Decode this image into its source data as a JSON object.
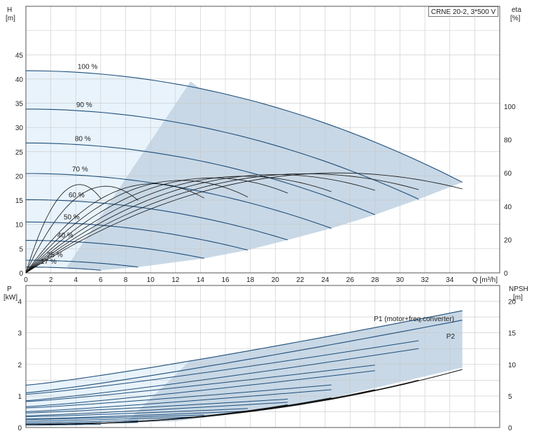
{
  "chart_data": [
    {
      "type": "line",
      "title": "CRNE 20-2, 3*500 V",
      "xlabel": "Q [m³/h]",
      "ylabel_lines": [
        "H",
        "[m]"
      ],
      "ylabel2_lines": [
        "eta",
        "[%]"
      ],
      "xlim": [
        0,
        38
      ],
      "ylim": [
        0,
        55
      ],
      "y2lim": [
        0,
        160
      ],
      "xticks": [
        0,
        2,
        4,
        6,
        8,
        10,
        12,
        14,
        16,
        18,
        20,
        22,
        24,
        26,
        28,
        30,
        32,
        34
      ],
      "yticks": [
        0,
        5,
        10,
        15,
        20,
        25,
        30,
        35,
        40,
        45
      ],
      "y2ticks": [
        0,
        20,
        40,
        60,
        80,
        100
      ],
      "grid": true,
      "head_curves": [
        {
          "name": "100 %",
          "h0": 41.7,
          "qmax": 35.0,
          "hend": 18.7
        },
        {
          "name": "90 %",
          "h0": 33.8,
          "qmax": 31.5,
          "hend": 15.2
        },
        {
          "name": "80 %",
          "h0": 26.8,
          "qmax": 28.0,
          "hend": 12.0
        },
        {
          "name": "70 %",
          "h0": 20.5,
          "qmax": 24.5,
          "hend": 9.2
        },
        {
          "name": "60 %",
          "h0": 15.1,
          "qmax": 21.0,
          "hend": 6.8
        },
        {
          "name": "50 %",
          "h0": 10.5,
          "qmax": 17.8,
          "hend": 4.7
        },
        {
          "name": "40 %",
          "h0": 6.7,
          "qmax": 14.3,
          "hend": 3.0
        },
        {
          "name": "25 %",
          "h0": 2.6,
          "qmax": 9.0,
          "hend": 1.2
        },
        {
          "name": "17 %",
          "h0": 1.2,
          "qmax": 6.0,
          "hend": 0.55
        }
      ],
      "efficiency_curves": [
        {
          "speed": "100 %",
          "eta_max": 60.0,
          "q_opt": 25.0,
          "qmax": 35.0
        },
        {
          "speed": "90 %",
          "eta_max": 59.5,
          "q_opt": 22.5,
          "qmax": 31.5
        },
        {
          "speed": "80 %",
          "eta_max": 59.0,
          "q_opt": 20.0,
          "qmax": 28.0
        },
        {
          "speed": "70 %",
          "eta_max": 58.0,
          "q_opt": 17.5,
          "qmax": 24.5
        },
        {
          "speed": "60 %",
          "eta_max": 57.0,
          "q_opt": 15.0,
          "qmax": 21.0
        },
        {
          "speed": "50 %",
          "eta_max": 55.5,
          "q_opt": 12.5,
          "qmax": 17.8
        },
        {
          "speed": "40 %",
          "eta_max": 53.5,
          "q_opt": 10.2,
          "qmax": 14.3
        },
        {
          "speed": "25 %",
          "eta_max": 52.0,
          "q_opt": 6.4,
          "qmax": 9.0
        },
        {
          "speed": "17 %",
          "eta_max": 53.0,
          "q_opt": 4.3,
          "qmax": 6.0
        }
      ]
    },
    {
      "type": "line",
      "xlabel": "",
      "ylabel_lines": [
        "P",
        "[kW]"
      ],
      "ylabel2_lines": [
        "NPSH",
        "[m]"
      ],
      "xlim": [
        0,
        38
      ],
      "ylim": [
        0,
        4.5
      ],
      "y2lim": [
        0,
        22.5
      ],
      "yticks": [
        0,
        1,
        2,
        3,
        4
      ],
      "y2ticks": [
        0,
        5,
        10,
        15,
        20
      ],
      "grid": true,
      "series": [
        {
          "name": "P1 (motor+freq.converter)",
          "p0": 1.34,
          "pend": 3.7,
          "qmax": 35.0
        },
        {
          "name": "P2",
          "p0": 1.1,
          "pend": 3.4,
          "qmax": 35.0
        }
      ],
      "power_curves": [
        {
          "speed": "90 %",
          "p1_0": 1.05,
          "p1_end": 2.75,
          "p2_0": 0.85,
          "p2_end": 2.5,
          "qmax": 31.5
        },
        {
          "speed": "80 %",
          "p1_0": 0.82,
          "p1_end": 1.98,
          "p2_0": 0.66,
          "p2_end": 1.8,
          "qmax": 28.0
        },
        {
          "speed": "70 %",
          "p1_0": 0.62,
          "p1_end": 1.35,
          "p2_0": 0.5,
          "p2_end": 1.2,
          "qmax": 24.5
        },
        {
          "speed": "60 %",
          "p1_0": 0.46,
          "p1_end": 0.9,
          "p2_0": 0.37,
          "p2_end": 0.8,
          "qmax": 21.0
        },
        {
          "speed": "50 %",
          "p1_0": 0.34,
          "p1_end": 0.6,
          "p2_0": 0.27,
          "p2_end": 0.52,
          "qmax": 17.8
        },
        {
          "speed": "40 %",
          "p1_0": 0.25,
          "p1_end": 0.4,
          "p2_0": 0.2,
          "p2_end": 0.34,
          "qmax": 14.3
        },
        {
          "speed": "25 %",
          "p1_0": 0.15,
          "p1_end": 0.22,
          "p2_0": 0.1,
          "p2_end": 0.16,
          "qmax": 9.0
        },
        {
          "speed": "17 %",
          "p1_0": 0.11,
          "p1_end": 0.15,
          "p2_0": 0.07,
          "p2_end": 0.1,
          "qmax": 6.0
        }
      ],
      "npsh_curves": [
        {
          "speed": "100 %",
          "qmax": 35.0,
          "npsh_end": 9.2
        },
        {
          "speed": "90 %",
          "qmax": 31.5,
          "npsh_end": 7.5
        },
        {
          "speed": "80 %",
          "qmax": 28.0,
          "npsh_end": 6.0
        },
        {
          "speed": "70 %",
          "qmax": 24.5,
          "npsh_end": 4.7
        },
        {
          "speed": "60 %",
          "qmax": 21.0,
          "npsh_end": 3.6
        }
      ]
    }
  ],
  "colors": {
    "curve": "#1f4e7a",
    "eta": "#111111",
    "region_dark": "#c8d8e6",
    "region_light": "#e8f3fc",
    "grid": "#c8c8c8",
    "axis": "#555555"
  }
}
